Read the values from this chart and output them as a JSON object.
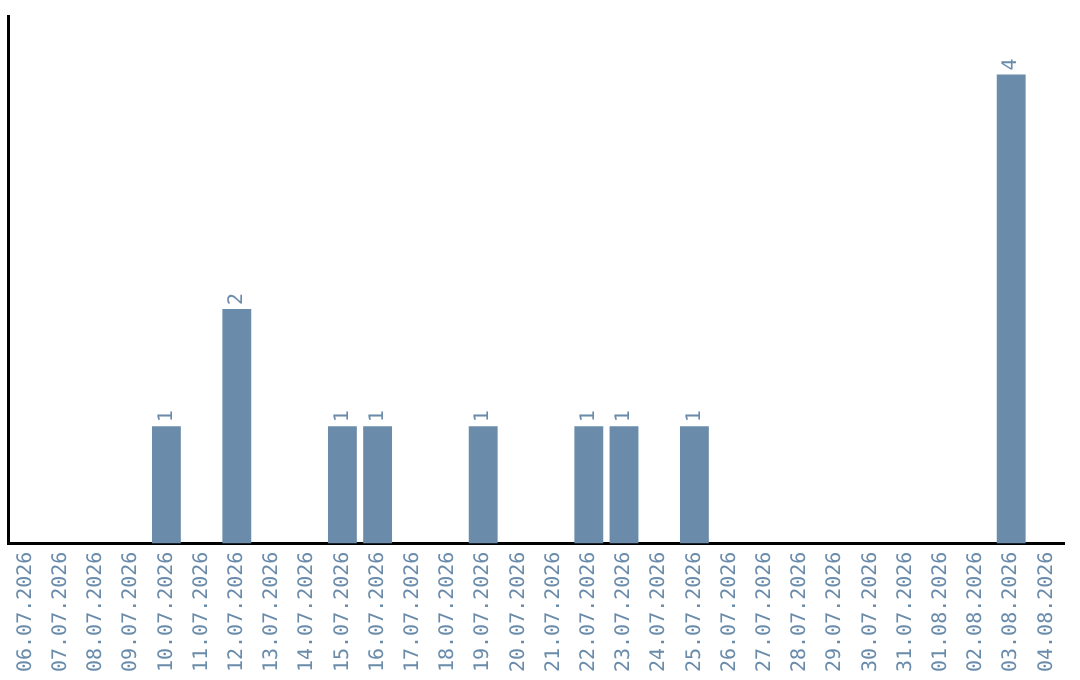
{
  "chart_data": {
    "type": "bar",
    "categories": [
      "06.07.2026",
      "07.07.2026",
      "08.07.2026",
      "09.07.2026",
      "10.07.2026",
      "11.07.2026",
      "12.07.2026",
      "13.07.2026",
      "14.07.2026",
      "15.07.2026",
      "16.07.2026",
      "17.07.2026",
      "18.07.2026",
      "19.07.2026",
      "20.07.2026",
      "21.07.2026",
      "22.07.2026",
      "23.07.2026",
      "24.07.2026",
      "25.07.2026",
      "26.07.2026",
      "27.07.2026",
      "28.07.2026",
      "29.07.2026",
      "30.07.2026",
      "31.07.2026",
      "01.08.2026",
      "02.08.2026",
      "03.08.2026",
      "04.08.2026"
    ],
    "values": [
      0,
      0,
      0,
      0,
      1,
      0,
      2,
      0,
      0,
      1,
      1,
      0,
      0,
      1,
      0,
      0,
      1,
      1,
      0,
      1,
      0,
      0,
      0,
      0,
      0,
      0,
      0,
      0,
      4,
      0
    ],
    "value_labels": [
      null,
      null,
      null,
      null,
      "1",
      null,
      "2",
      null,
      null,
      "1",
      "1",
      null,
      null,
      "1",
      null,
      null,
      "1",
      "1",
      null,
      "1",
      null,
      null,
      null,
      null,
      null,
      null,
      null,
      null,
      "4",
      null
    ],
    "color": "#6a8caa",
    "grid": false,
    "legend": false
  }
}
